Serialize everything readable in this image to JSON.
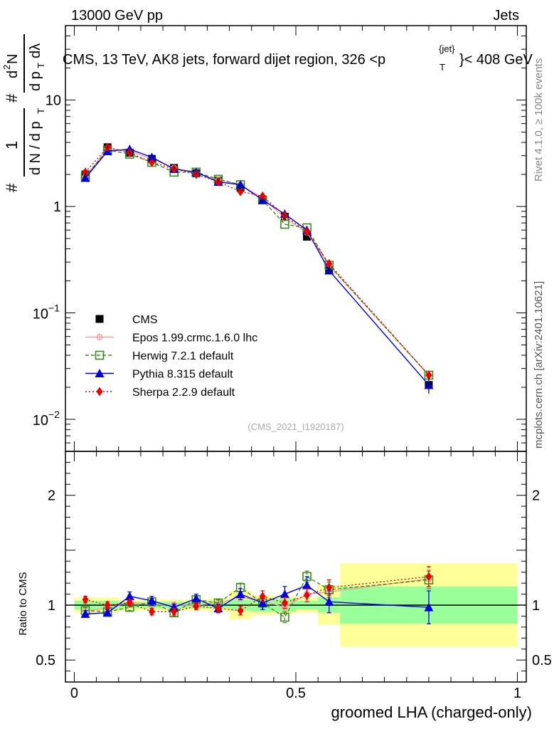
{
  "header": {
    "left": "13000 GeV pp",
    "right": "Jets"
  },
  "title": "CMS, 13 TeV, AK8 jets, forward dijet region, 326 <p",
  "title_sup": "{jet}",
  "title_sub": "T",
  "title_end": "}< 408 GeV",
  "ylabel": {
    "hash1": "#",
    "one": "1",
    "dN": "d N / d p",
    "dN_sub": "T",
    "hash2": "#",
    "d2N": "d",
    "d2N_sup": "2",
    "d2N_end": "N",
    "dpT": "d p",
    "dpT_sub": "T",
    "dl": "dλ"
  },
  "side_labels": {
    "rivet": "Rivet 4.1.0, ≥ 100k events",
    "mcplots": "mcplots.cern.ch [arXiv:2401.10621]"
  },
  "watermark": "(CMS_2021_I1920187)",
  "ratio_ylabel": "Ratio to CMS",
  "xlabel": "groomed LHA (charged-only)",
  "colors": {
    "cms": "#000000",
    "epos": "#f4a0a0",
    "herwig": "#3a8c1a",
    "pythia": "#0000dd",
    "sherpa": "#ee0000",
    "band_yellow": "#ffff99",
    "band_green": "#99ff99"
  },
  "chart_data": {
    "type": "line",
    "top": {
      "yscale": "log",
      "ylim": [
        0.005,
        50
      ],
      "yticks": [
        {
          "v": 0.01,
          "base": "10",
          "exp": "−2"
        },
        {
          "v": 0.1,
          "base": "10",
          "exp": "−1"
        },
        {
          "v": 1,
          "label": "1"
        },
        {
          "v": 10,
          "label": "10"
        }
      ]
    },
    "ratio": {
      "ylim": [
        0.3,
        2.4
      ],
      "yticks": [
        {
          "v": 0.5,
          "label": "0.5"
        },
        {
          "v": 1,
          "label": "1"
        },
        {
          "v": 2,
          "label": "2"
        }
      ]
    },
    "xlim": [
      -0.02,
      1.02
    ],
    "xticks": [
      {
        "v": 0,
        "label": "0"
      },
      {
        "v": 0.5,
        "label": "0.5"
      },
      {
        "v": 1,
        "label": "1"
      }
    ],
    "bin_edges": [
      0,
      0.05,
      0.1,
      0.15,
      0.2,
      0.25,
      0.3,
      0.35,
      0.4,
      0.45,
      0.5,
      0.55,
      0.6,
      1.0
    ],
    "x": [
      0.025,
      0.075,
      0.125,
      0.175,
      0.225,
      0.275,
      0.325,
      0.375,
      0.425,
      0.475,
      0.525,
      0.575,
      0.8
    ],
    "cms": {
      "name": "CMS",
      "values": [
        2.0,
        3.6,
        3.2,
        2.8,
        2.3,
        2.05,
        1.75,
        1.5,
        1.15,
        0.8,
        0.52,
        0.25,
        0.021
      ],
      "band_inner": [
        0.04,
        0.04,
        0.03,
        0.03,
        0.03,
        0.03,
        0.03,
        0.05,
        0.06,
        0.06,
        0.04,
        0.07,
        0.17
      ],
      "band_outer": [
        0.07,
        0.07,
        0.05,
        0.05,
        0.05,
        0.05,
        0.06,
        0.13,
        0.09,
        0.08,
        0.07,
        0.18,
        0.38
      ]
    },
    "series": [
      {
        "name": "Epos 1.99.crmc.1.6.0 lhc",
        "key": "epos",
        "marker": "star",
        "dash": "",
        "values": [
          1.9,
          3.5,
          3.3,
          2.8,
          2.3,
          2.05,
          1.78,
          1.6,
          1.2,
          0.78,
          0.57,
          0.28,
          0.026
        ],
        "ratio": [
          0.95,
          0.97,
          1.03,
          1.0,
          1.0,
          1.0,
          1.02,
          1.07,
          1.04,
          0.98,
          1.1,
          1.12,
          1.24
        ],
        "rerr": [
          0.03,
          0.03,
          0.03,
          0.03,
          0.03,
          0.03,
          0.03,
          0.03,
          0.04,
          0.04,
          0.05,
          0.06,
          0.08
        ]
      },
      {
        "name": "Herwig 7.2.1 default",
        "key": "herwig",
        "marker": "square",
        "dash": "5,3",
        "values": [
          1.9,
          3.4,
          3.1,
          2.6,
          2.1,
          2.1,
          1.8,
          1.6,
          1.15,
          0.68,
          0.63,
          0.28,
          0.026
        ],
        "ratio": [
          0.95,
          0.94,
          0.98,
          1.03,
          0.93,
          1.05,
          1.02,
          1.16,
          1.02,
          0.89,
          1.26,
          1.14,
          1.23
        ],
        "rerr": [
          0.03,
          0.03,
          0.03,
          0.03,
          0.03,
          0.03,
          0.03,
          0.04,
          0.04,
          0.05,
          0.05,
          0.07,
          0.08
        ]
      },
      {
        "name": "Pythia 8.315 default",
        "key": "pythia",
        "marker": "triangle",
        "dash": "",
        "values": [
          1.85,
          3.3,
          3.45,
          2.9,
          2.25,
          2.1,
          1.7,
          1.6,
          1.15,
          0.85,
          0.6,
          0.25,
          0.021
        ],
        "ratio": [
          0.92,
          0.93,
          1.08,
          1.04,
          0.98,
          1.06,
          0.97,
          1.1,
          1.02,
          1.1,
          1.18,
          1.03,
          0.98
        ],
        "rerr": [
          0.03,
          0.03,
          0.04,
          0.04,
          0.03,
          0.04,
          0.04,
          0.05,
          0.06,
          0.07,
          0.08,
          0.1,
          0.15
        ]
      },
      {
        "name": "Sherpa 2.2.9 default",
        "key": "sherpa",
        "marker": "diamond",
        "dash": "2,3",
        "values": [
          2.1,
          3.6,
          3.2,
          2.6,
          2.25,
          2.0,
          1.7,
          1.38,
          1.25,
          0.82,
          0.58,
          0.29,
          0.026
        ],
        "ratio": [
          1.05,
          1.0,
          1.02,
          0.94,
          0.94,
          0.99,
          0.97,
          0.95,
          1.08,
          1.02,
          1.09,
          1.16,
          1.26
        ],
        "rerr": [
          0.03,
          0.03,
          0.03,
          0.03,
          0.03,
          0.03,
          0.03,
          0.04,
          0.05,
          0.05,
          0.06,
          0.07,
          0.09
        ]
      }
    ]
  }
}
